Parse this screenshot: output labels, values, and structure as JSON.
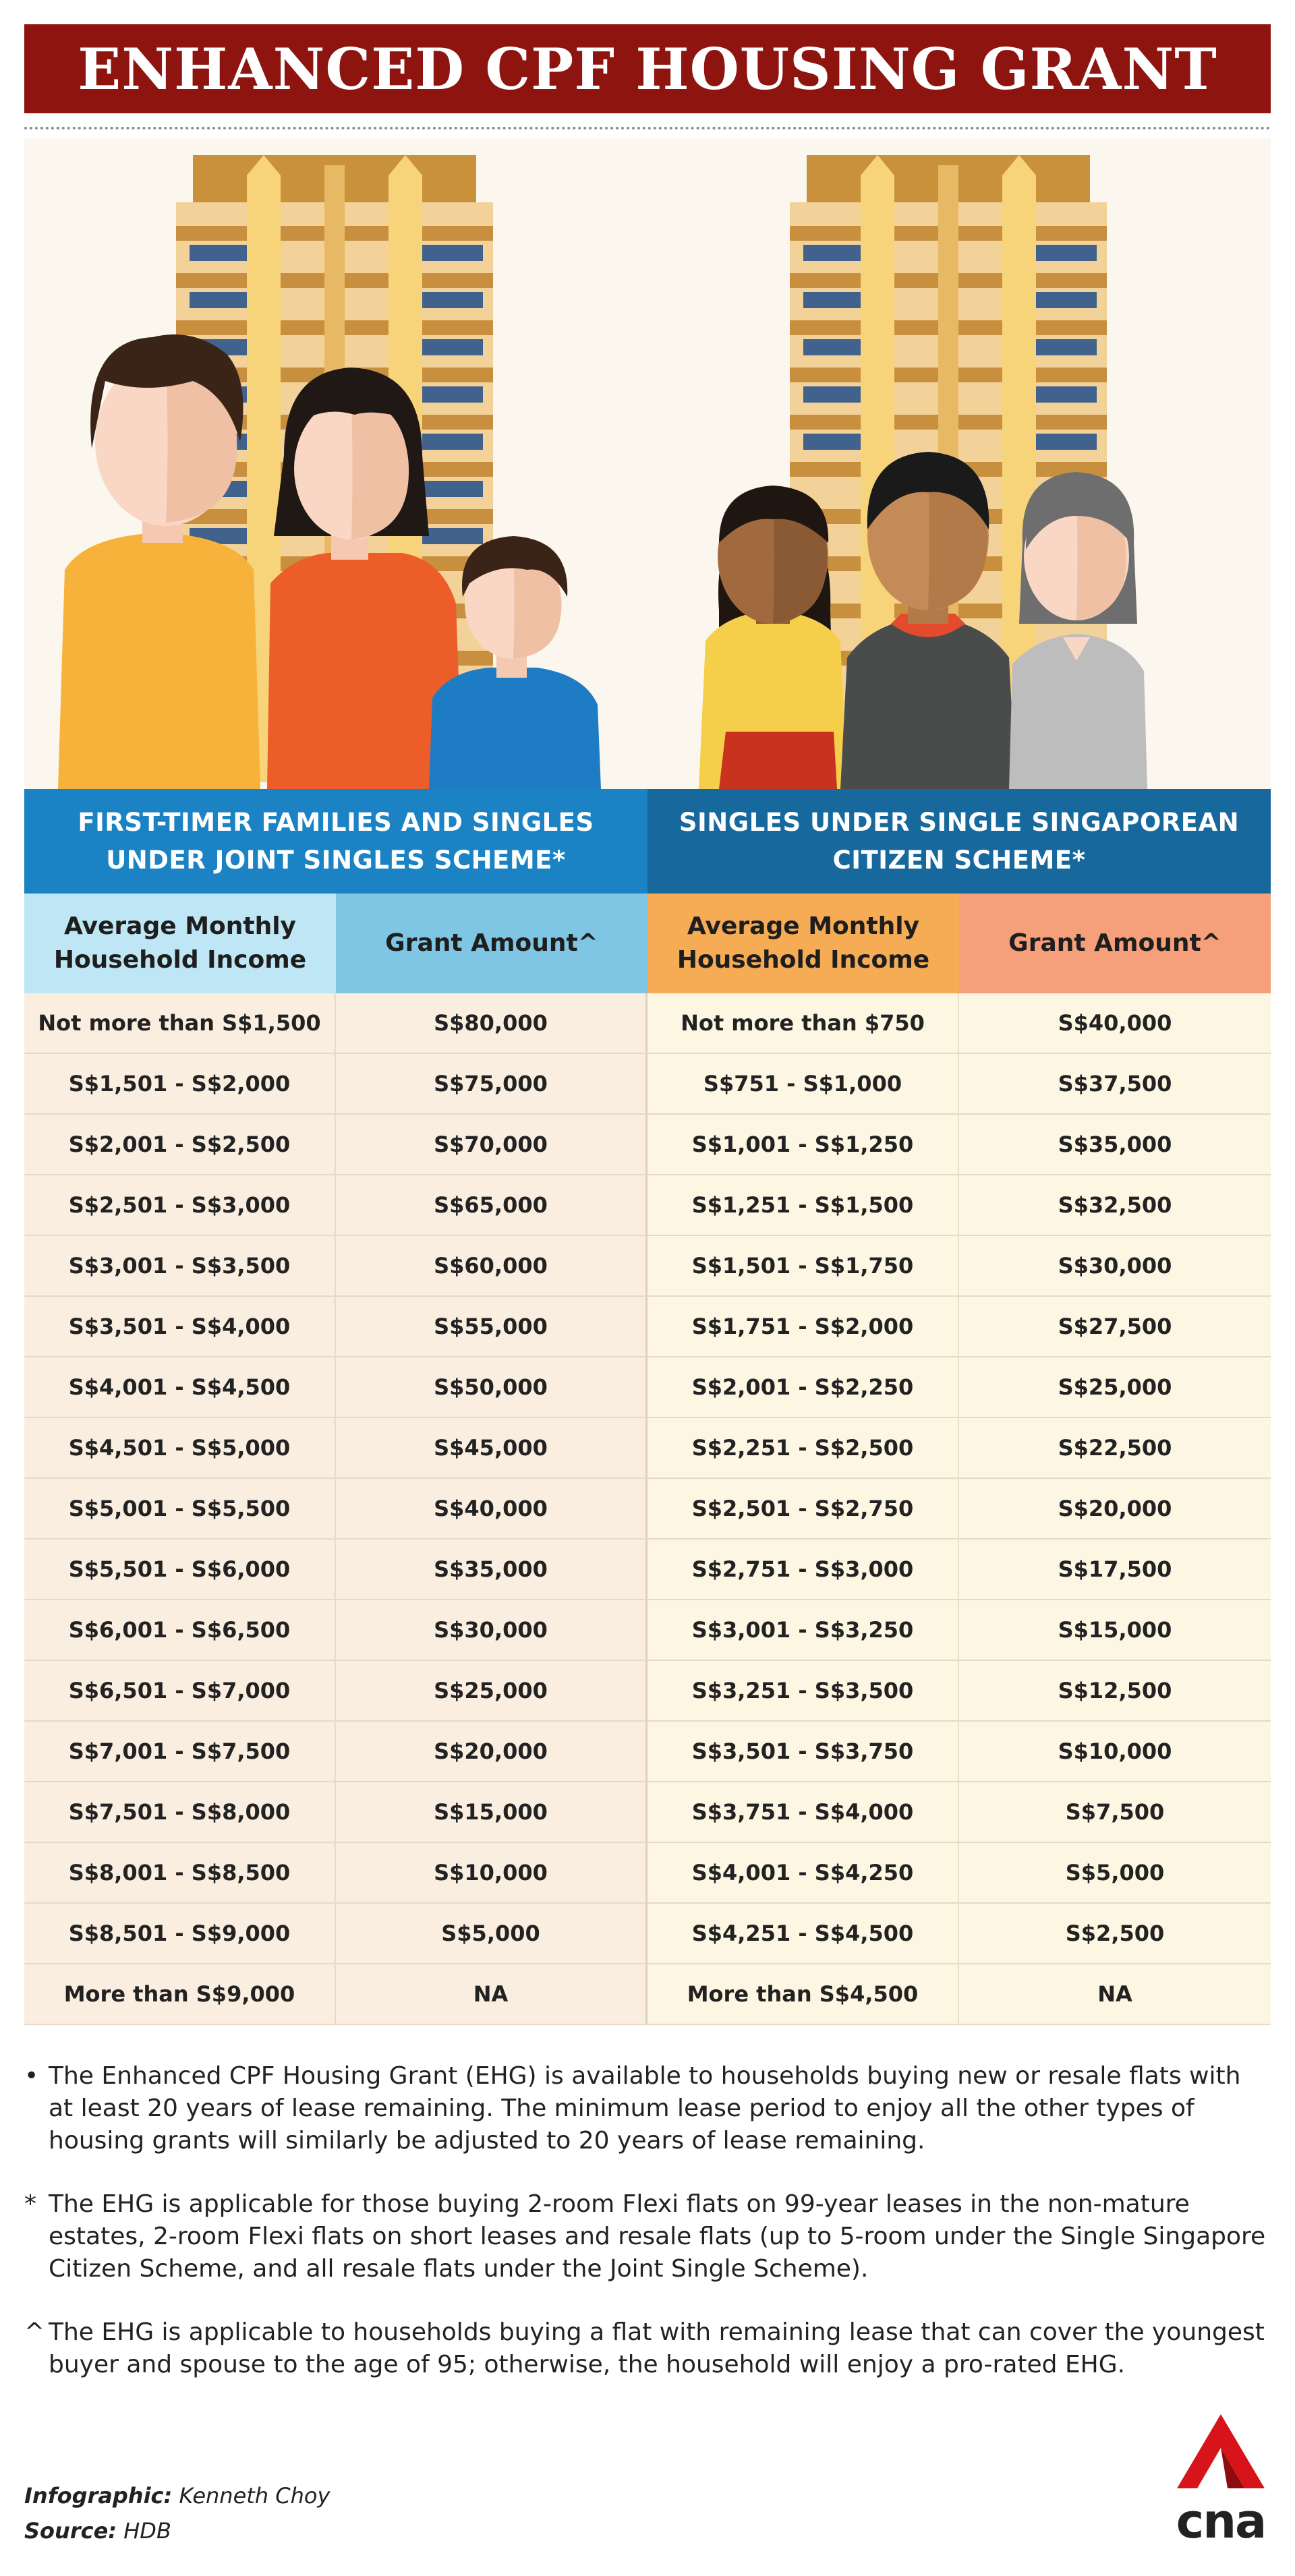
{
  "title": "ENHANCED CPF HOUSING GRANT",
  "left_table": {
    "header": "FIRST-TIMER FAMILIES AND SINGLES UNDER JOINT SINGLES SCHEME*",
    "col_income": "Average Monthly Household Income",
    "col_grant": "Grant Amount^",
    "rows": [
      {
        "income": "Not more than S$1,500",
        "grant": "S$80,000"
      },
      {
        "income": "S$1,501 - S$2,000",
        "grant": "S$75,000"
      },
      {
        "income": "S$2,001 - S$2,500",
        "grant": "S$70,000"
      },
      {
        "income": "S$2,501 - S$3,000",
        "grant": "S$65,000"
      },
      {
        "income": "S$3,001 - S$3,500",
        "grant": "S$60,000"
      },
      {
        "income": "S$3,501 - S$4,000",
        "grant": "S$55,000"
      },
      {
        "income": "S$4,001 - S$4,500",
        "grant": "S$50,000"
      },
      {
        "income": "S$4,501 - S$5,000",
        "grant": "S$45,000"
      },
      {
        "income": "S$5,001 - S$5,500",
        "grant": "S$40,000"
      },
      {
        "income": "S$5,501 - S$6,000",
        "grant": "S$35,000"
      },
      {
        "income": "S$6,001 - S$6,500",
        "grant": "S$30,000"
      },
      {
        "income": "S$6,501 - S$7,000",
        "grant": "S$25,000"
      },
      {
        "income": "S$7,001 - S$7,500",
        "grant": "S$20,000"
      },
      {
        "income": "S$7,501 - S$8,000",
        "grant": "S$15,000"
      },
      {
        "income": "S$8,001 - S$8,500",
        "grant": "S$10,000"
      },
      {
        "income": "S$8,501 - S$9,000",
        "grant": "S$5,000"
      },
      {
        "income": "More than S$9,000",
        "grant": "NA"
      }
    ]
  },
  "right_table": {
    "header": "SINGLES UNDER SINGLE SINGAPOREAN CITIZEN SCHEME*",
    "col_income": "Average Monthly Household Income",
    "col_grant": "Grant Amount^",
    "rows": [
      {
        "income": "Not more than $750",
        "grant": "S$40,000"
      },
      {
        "income": "S$751 - S$1,000",
        "grant": "S$37,500"
      },
      {
        "income": "S$1,001 - S$1,250",
        "grant": "S$35,000"
      },
      {
        "income": "S$1,251 - S$1,500",
        "grant": "S$32,500"
      },
      {
        "income": "S$1,501 - S$1,750",
        "grant": "S$30,000"
      },
      {
        "income": "S$1,751 - S$2,000",
        "grant": "S$27,500"
      },
      {
        "income": "S$2,001 - S$2,250",
        "grant": "S$25,000"
      },
      {
        "income": "S$2,251 - S$2,500",
        "grant": "S$22,500"
      },
      {
        "income": "S$2,501 - S$2,750",
        "grant": "S$20,000"
      },
      {
        "income": "S$2,751 - S$3,000",
        "grant": "S$17,500"
      },
      {
        "income": "S$3,001 - S$3,250",
        "grant": "S$15,000"
      },
      {
        "income": "S$3,251 - S$3,500",
        "grant": "S$12,500"
      },
      {
        "income": "S$3,501 - S$3,750",
        "grant": "S$10,000"
      },
      {
        "income": "S$3,751 - S$4,000",
        "grant": "S$7,500"
      },
      {
        "income": "S$4,001 - S$4,250",
        "grant": "S$5,000"
      },
      {
        "income": "S$4,251 - S$4,500",
        "grant": "S$2,500"
      },
      {
        "income": "More than S$4,500",
        "grant": "NA"
      }
    ]
  },
  "notes": [
    {
      "symbol": "•",
      "text": "The Enhanced CPF Housing Grant (EHG) is available to households buying new or resale flats with at least 20 years of lease remaining. The minimum lease period to enjoy all the other types of housing grants will similarly be adjusted to 20 years of lease remaining."
    },
    {
      "symbol": "*",
      "text": "The EHG is applicable for those buying 2-room Flexi flats on 99-year leases in the non-mature estates, 2-room Flexi flats on short leases and resale flats (up to 5-room under the Single Singapore Citizen Scheme, and all resale flats under the Joint Single Scheme)."
    },
    {
      "symbol": "^",
      "text": "The EHG is applicable to households buying a flat with remaining lease that can cover the youngest buyer and spouse to the age of 95; otherwise, the household will enjoy a pro-rated EHG."
    }
  ],
  "credits": {
    "infographic_label": "Infographic:",
    "infographic_value": "Kenneth Choy",
    "source_label": "Source:",
    "source_value": "HDB"
  },
  "logo_text": "cna",
  "colors": {
    "title_bg": "#8e1410",
    "left_header_bg": "#1b83c4",
    "right_header_bg": "#17699d",
    "left_income_head": "#bfe6f4",
    "left_grant_head": "#7ec6e3",
    "right_income_head": "#f6ab55",
    "right_grant_head": "#f59f7b",
    "logo_red": "#d7141a"
  }
}
